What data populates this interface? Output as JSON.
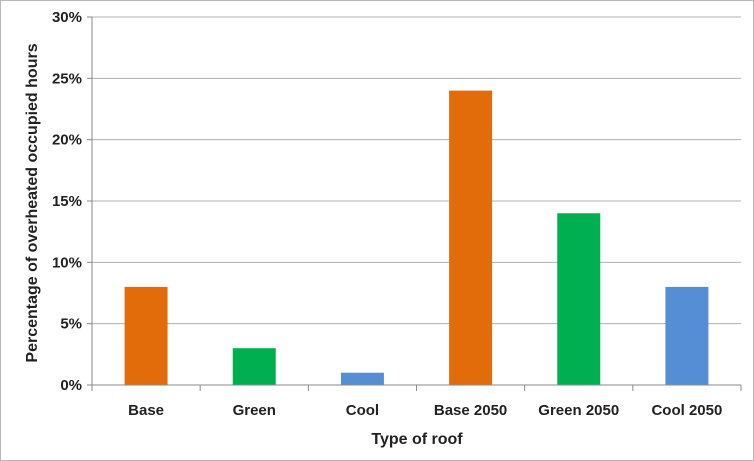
{
  "chart_data": {
    "type": "bar",
    "title": "",
    "xlabel": "Type of roof",
    "ylabel": "Percentage of overheated occupied hours",
    "categories": [
      "Base",
      "Green",
      "Cool",
      "Base 2050",
      "Green 2050",
      "Cool 2050"
    ],
    "values": [
      8,
      3,
      1,
      24,
      14,
      8
    ],
    "value_unit": "%",
    "bar_colors": [
      "#e36c0a",
      "#00b050",
      "#558ed5",
      "#e36c0a",
      "#00b050",
      "#558ed5"
    ],
    "ylim": [
      0,
      30
    ],
    "yticks": [
      0,
      5,
      10,
      15,
      20,
      25,
      30
    ],
    "ytick_labels": [
      "0%",
      "5%",
      "10%",
      "15%",
      "20%",
      "25%",
      "30%"
    ],
    "grid": true,
    "grid_color": "#b0b0b0",
    "legend": "none"
  }
}
